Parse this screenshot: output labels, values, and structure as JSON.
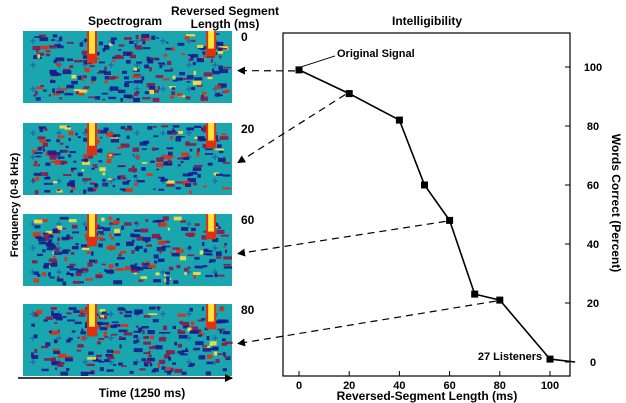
{
  "chart_data": [
    {
      "type": "heatmap",
      "title": "Spectrogram",
      "panel_header": "Reversed Segment Length (ms)",
      "header_line1": "Reversed Segment",
      "header_line2": "Length (ms)",
      "panel_labels": [
        "0",
        "20",
        "60",
        "80"
      ],
      "ylabel": "Frequency (0-8 kHz)",
      "xlabel": "Time (1250 ms)",
      "colors": {
        "background": "#1aa6ae",
        "low": "#1a1a8c",
        "mid": "#8b1a4a",
        "high": "#e03010",
        "peak": "#ffe23a",
        "cross": "#2a3aa8"
      }
    },
    {
      "type": "line",
      "title": "Intelligibility",
      "xlabel": "Reversed-Segment Length (ms)",
      "ylabel": "Words Correct (Percent)",
      "xlim": [
        -5,
        110
      ],
      "ylim": [
        -5,
        110
      ],
      "xticks": [
        "0",
        "20",
        "40",
        "60",
        "80",
        "100"
      ],
      "yticks": [
        "0",
        "20",
        "40",
        "60",
        "80",
        "100"
      ],
      "series": [
        {
          "x": [
            0,
            20,
            40,
            50,
            60,
            70,
            80,
            100,
            110
          ],
          "y": [
            99,
            91,
            82,
            60,
            48,
            23,
            21,
            1,
            0
          ]
        }
      ],
      "annotations": [
        {
          "text": "Original Signal",
          "x": 0,
          "y": 99
        },
        {
          "text": "27 Listeners"
        }
      ],
      "links": [
        {
          "panel": 0,
          "x": 0,
          "y": 99
        },
        {
          "panel": 1,
          "x": 20,
          "y": 91
        },
        {
          "panel": 2,
          "x": 60,
          "y": 48
        },
        {
          "panel": 3,
          "x": 80,
          "y": 21
        }
      ]
    }
  ]
}
